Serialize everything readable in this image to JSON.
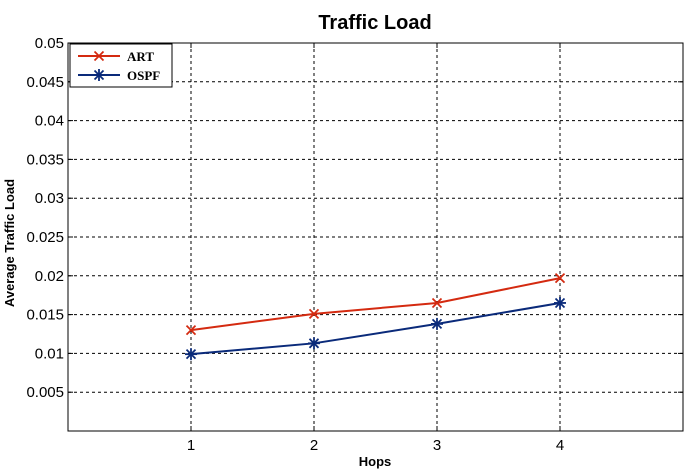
{
  "chart_data": {
    "type": "line",
    "title": "Traffic Load",
    "xlabel": "Hops",
    "ylabel": "Average Traffic Load",
    "xlim": [
      0,
      5
    ],
    "ylim": [
      0,
      0.05
    ],
    "x_ticks": [
      1,
      2,
      3,
      4
    ],
    "y_ticks": [
      0.005,
      0.01,
      0.015,
      0.02,
      0.025,
      0.03,
      0.035,
      0.04,
      0.045,
      0.05
    ],
    "y_tick_labels": [
      "0.005",
      "0.01",
      "0.015",
      "0.02",
      "0.025",
      "0.03",
      "0.035",
      "0.04",
      "0.045",
      "0.05"
    ],
    "grid": true,
    "legend_position": "top-left",
    "x": [
      1,
      2,
      3,
      4
    ],
    "series": [
      {
        "name": "ART",
        "values": [
          0.013,
          0.0151,
          0.0165,
          0.0197
        ],
        "color": "#d42a10",
        "marker": "x"
      },
      {
        "name": "OSPF",
        "values": [
          0.0099,
          0.0113,
          0.0138,
          0.0165
        ],
        "color": "#0a2a7a",
        "marker": "star"
      }
    ]
  }
}
